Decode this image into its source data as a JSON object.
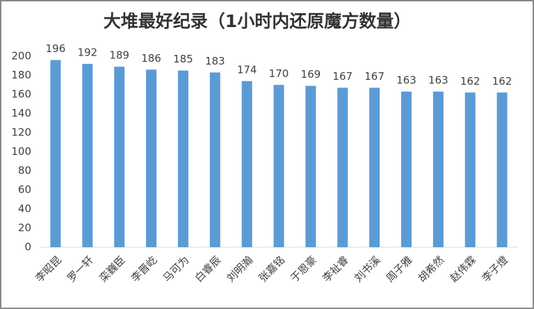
{
  "chart_data": {
    "type": "bar",
    "title": "大堆最好纪录（1小时内还原魔方数量）",
    "categories": [
      "李昭昆",
      "罗一轩",
      "栾巍臣",
      "李晋屹",
      "马可为",
      "白睿辰",
      "刘明瀚",
      "张嘉铭",
      "于恩豪",
      "李祉睿",
      "刘书溪",
      "周子雅",
      "胡希然",
      "赵伟霖",
      "李子燈"
    ],
    "values": [
      196,
      192,
      189,
      186,
      185,
      183,
      174,
      170,
      169,
      167,
      167,
      163,
      163,
      162,
      162
    ],
    "color": "#5b9bd5",
    "ylim": [
      0,
      200
    ],
    "yticks": [
      0,
      20,
      40,
      60,
      80,
      100,
      120,
      140,
      160,
      180,
      200
    ],
    "grid": false
  }
}
